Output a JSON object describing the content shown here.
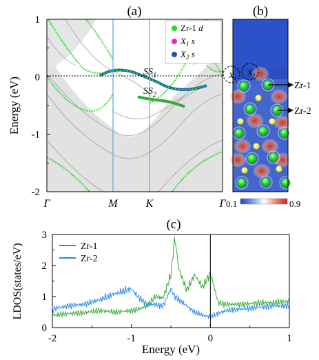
{
  "panels": {
    "a_label": "(a)",
    "b_label": "(b)",
    "c_label": "(c)"
  },
  "colors": {
    "zr1_d": "#22dd22",
    "x1_s": "#ee22cc",
    "x2_s": "#1a55b0",
    "ldos_zr1": "#33aa33",
    "ldos_zr2": "#2288ee",
    "bulk_bands": "#aaaaaa",
    "k_lines": "#55aadd",
    "colorbar_low": "#2244bb",
    "colorbar_mid": "#ffffff",
    "colorbar_high": "#cc2222"
  },
  "panel_a": {
    "ylabel": "Energy (eV)",
    "yticks": [
      "1",
      "0",
      "-1",
      "-2"
    ],
    "ytick_values": [
      1,
      0,
      -1,
      -2
    ],
    "ylim": [
      -2,
      1
    ],
    "kpoints": [
      "Γ",
      "M",
      "K",
      "Γ"
    ],
    "legend": [
      {
        "main": "Zr-1",
        "sub": "",
        "tail": " d",
        "color": "#22dd22"
      },
      {
        "main": "X",
        "sub": "1",
        "tail": " s",
        "color": "#ee22cc"
      },
      {
        "main": "X",
        "sub": "2",
        "tail": " s",
        "color": "#1a55b0"
      }
    ],
    "ss1": {
      "main": "SS",
      "sub": "1"
    },
    "ss2": {
      "main": "SS",
      "sub": "2"
    }
  },
  "panel_b": {
    "labels": {
      "x1": "X",
      "x2": "X",
      "zr1": "Zr-1",
      "zr2": "Zr-2"
    },
    "colorbar_min": "0.1",
    "colorbar_max": "0.9"
  },
  "chart_data": {
    "type": "line",
    "xlabel": "Energy (eV)",
    "ylabel": "LDOS(states/eV)",
    "xlim": [
      -2,
      1
    ],
    "ylim": [
      0,
      3
    ],
    "xticks": [
      "-2",
      "-1",
      "0",
      "1"
    ],
    "yticks": [
      "0",
      "1",
      "2",
      "3"
    ],
    "legend_position": "top-left",
    "x": [
      -2.0,
      -1.8,
      -1.6,
      -1.4,
      -1.2,
      -1.0,
      -0.9,
      -0.8,
      -0.7,
      -0.6,
      -0.5,
      -0.45,
      -0.4,
      -0.3,
      -0.2,
      -0.1,
      0.0,
      0.1,
      0.2,
      0.4,
      0.6,
      0.8,
      1.0
    ],
    "series": [
      {
        "name": "Zr-1",
        "values": [
          0.4,
          0.45,
          0.48,
          0.55,
          0.5,
          0.55,
          0.6,
          0.7,
          1.0,
          0.95,
          1.7,
          2.9,
          1.9,
          1.2,
          1.7,
          1.3,
          1.75,
          0.8,
          0.75,
          0.75,
          0.8,
          0.8,
          0.85
        ]
      },
      {
        "name": "Zr-2",
        "values": [
          0.6,
          0.7,
          0.75,
          0.9,
          1.1,
          1.25,
          0.95,
          0.75,
          0.75,
          0.7,
          1.25,
          1.0,
          0.9,
          0.7,
          0.5,
          0.4,
          0.35,
          0.45,
          0.55,
          0.6,
          0.65,
          0.7,
          0.7
        ]
      }
    ]
  }
}
